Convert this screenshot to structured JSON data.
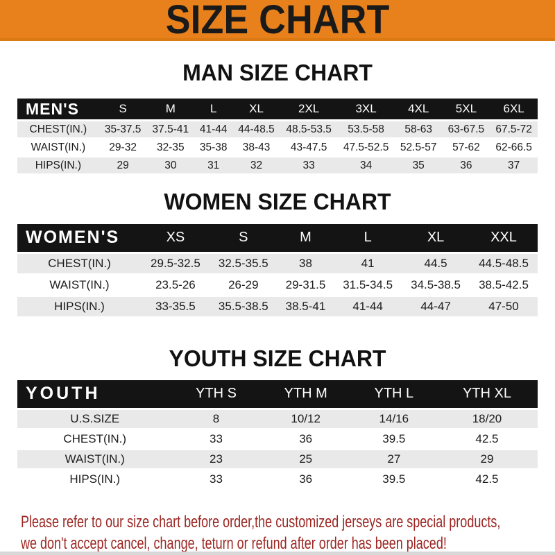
{
  "banner": {
    "title": "SIZE CHART"
  },
  "colors": {
    "banner_bg": "#E8811C",
    "banner_text": "#1A1A1A",
    "header_bar_bg": "#141414",
    "header_bar_text": "#FFFFFF",
    "row_stripe": "#E9E9E9",
    "footer_text": "#9C2723"
  },
  "sections": [
    {
      "id": "men",
      "heading": "MAN SIZE CHART",
      "corner_label": "MEN'S",
      "columns": [
        "S",
        "M",
        "L",
        "XL",
        "2XL",
        "3XL",
        "4XL",
        "5XL",
        "6XL"
      ],
      "rows": [
        {
          "label": "CHEST(IN.)",
          "values": [
            "35-37.5",
            "37.5-41",
            "41-44",
            "44-48.5",
            "48.5-53.5",
            "53.5-58",
            "58-63",
            "63-67.5",
            "67.5-72"
          ]
        },
        {
          "label": "WAIST(IN.)",
          "values": [
            "29-32",
            "32-35",
            "35-38",
            "38-43",
            "43-47.5",
            "47.5-52.5",
            "52.5-57",
            "57-62",
            "62-66.5"
          ]
        },
        {
          "label": "HIPS(IN.)",
          "values": [
            "29",
            "30",
            "31",
            "32",
            "33",
            "34",
            "35",
            "36",
            "37"
          ]
        }
      ]
    },
    {
      "id": "women",
      "heading": "WOMEN SIZE CHART",
      "corner_label": "WOMEN'S",
      "columns": [
        "XS",
        "S",
        "M",
        "L",
        "XL",
        "XXL"
      ],
      "rows": [
        {
          "label": "CHEST(IN.)",
          "values": [
            "29.5-32.5",
            "32.5-35.5",
            "38",
            "41",
            "44.5",
            "44.5-48.5"
          ]
        },
        {
          "label": "WAIST(IN.)",
          "values": [
            "23.5-26",
            "26-29",
            "29-31.5",
            "31.5-34.5",
            "34.5-38.5",
            "38.5-42.5"
          ]
        },
        {
          "label": "HIPS(IN.)",
          "values": [
            "33-35.5",
            "35.5-38.5",
            "38.5-41",
            "41-44",
            "44-47",
            "47-50"
          ]
        }
      ]
    },
    {
      "id": "youth",
      "heading": "YOUTH SIZE CHART",
      "corner_label": "YOUTH",
      "columns": [
        "YTH S",
        "YTH M",
        "YTH L",
        "YTH XL"
      ],
      "rows": [
        {
          "label": "U.S.SIZE",
          "values": [
            "8",
            "10/12",
            "14/16",
            "18/20"
          ]
        },
        {
          "label": "CHEST(IN.)",
          "values": [
            "33",
            "36",
            "39.5",
            "42.5"
          ]
        },
        {
          "label": "WAIST(IN.)",
          "values": [
            "23",
            "25",
            "27",
            "29"
          ]
        },
        {
          "label": "HIPS(IN.)",
          "values": [
            "33",
            "36",
            "39.5",
            "42.5"
          ]
        }
      ]
    }
  ],
  "footer": {
    "lines": [
      "Please refer to our size chart before order,the customized jerseys are special products,",
      "we don't accept cancel, change, teturn or refund after order has been placed!"
    ]
  }
}
